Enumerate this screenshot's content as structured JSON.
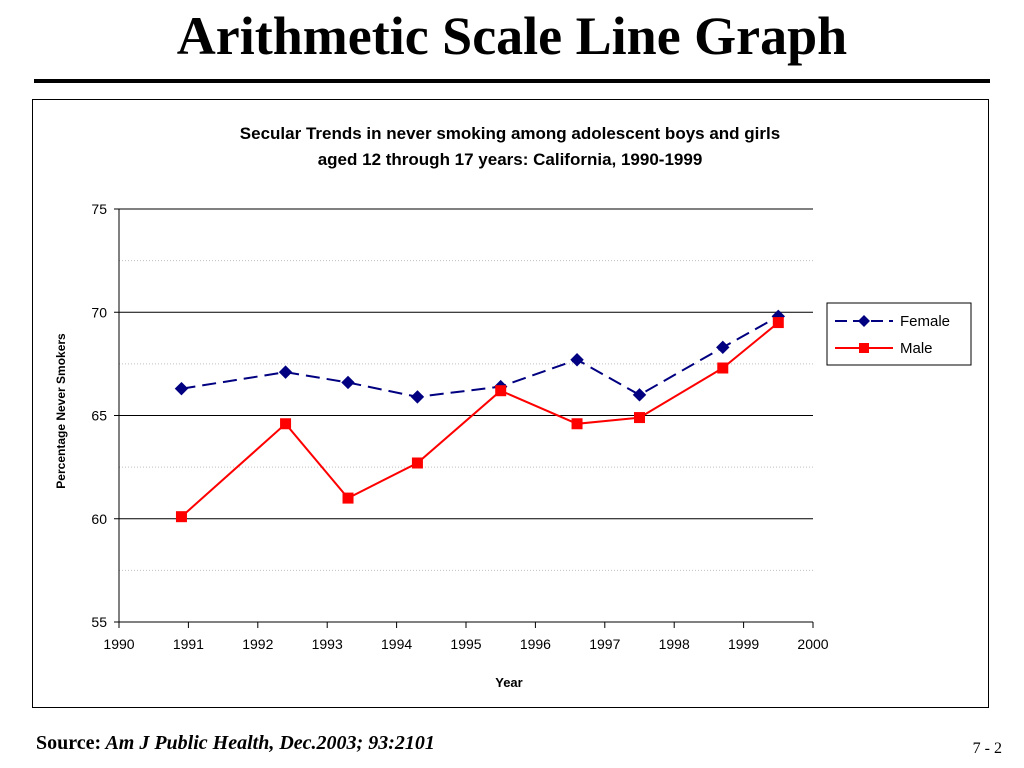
{
  "slide": {
    "title": "Arithmetic Scale Line Graph",
    "source_label": "Source:",
    "source_text": " Am J Public Health, Dec.2003; 93:2101",
    "page_number": "7 - 2"
  },
  "colors": {
    "female": "#000080",
    "male": "#ff0000",
    "axis": "#000000",
    "minor_grid": "#c0c0c0"
  },
  "chart_data": {
    "type": "line",
    "title_line1": "Secular Trends in never smoking among adolescent boys and girls",
    "title_line2": "aged 12 through 17 years: California, 1990-1999",
    "xlabel": "Year",
    "ylabel": "Percentage Never Smokers",
    "xlim": [
      1990,
      2000
    ],
    "ylim": [
      55,
      75
    ],
    "x_ticks": [
      1990,
      1991,
      1992,
      1993,
      1994,
      1995,
      1996,
      1997,
      1998,
      1999,
      2000
    ],
    "y_ticks": [
      55,
      60,
      65,
      70,
      75
    ],
    "grid": "major solid, minor dotted",
    "legend_position": "right",
    "series": [
      {
        "name": "Female",
        "style": "dashed, diamond markers",
        "x": [
          1990.9,
          1992.4,
          1993.3,
          1994.3,
          1995.5,
          1996.6,
          1997.5,
          1998.7,
          1999.5
        ],
        "y": [
          66.3,
          67.1,
          66.6,
          65.9,
          66.4,
          67.7,
          66.0,
          68.3,
          69.8
        ]
      },
      {
        "name": "Male",
        "style": "solid, square markers",
        "x": [
          1990.9,
          1992.4,
          1993.3,
          1994.3,
          1995.5,
          1996.6,
          1997.5,
          1998.7,
          1999.5
        ],
        "y": [
          60.1,
          64.6,
          61.0,
          62.7,
          66.2,
          64.6,
          64.9,
          67.3,
          69.5
        ]
      }
    ]
  }
}
